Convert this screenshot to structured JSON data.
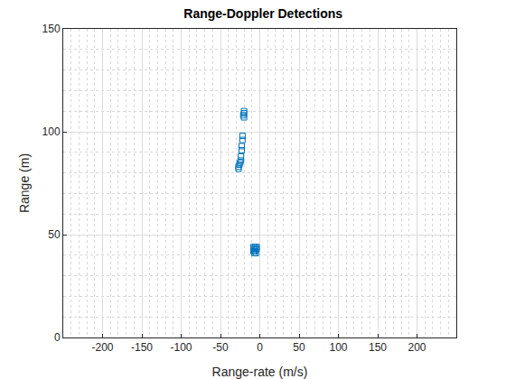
{
  "chart_data": {
    "type": "scatter",
    "title": "Range-Doppler Detections",
    "x_label": "Range-rate (m/s)",
    "y_label": "Range (m)",
    "x": [
      -20,
      -20,
      -21,
      -20,
      -22,
      -22,
      -23,
      -23,
      -24,
      -24,
      -25,
      -26,
      -27,
      -27,
      -6,
      -8,
      -4,
      -6,
      -8,
      -4,
      -6,
      -8,
      -5,
      -7
    ],
    "y": [
      110,
      109,
      108,
      107,
      98,
      96,
      93,
      91,
      88,
      86,
      85,
      84,
      83,
      82,
      44,
      44,
      44,
      43,
      43,
      43,
      42,
      42,
      41,
      41
    ],
    "color": "#0072bd",
    "marker": "square-open",
    "xlim": [
      -250,
      250
    ],
    "xticks": [
      -200,
      -150,
      -100,
      -50,
      0,
      50,
      100,
      150,
      200
    ],
    "ylim": [
      0,
      150
    ],
    "yticks": [
      0,
      50,
      100,
      150
    ],
    "grid": true
  }
}
